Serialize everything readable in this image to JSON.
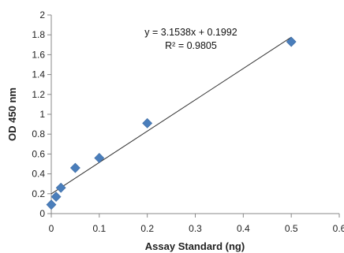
{
  "chart_data": {
    "type": "scatter",
    "xlabel": "Assay Standard (ng)",
    "ylabel": "OD 450 nm",
    "xlim": [
      0,
      0.6
    ],
    "ylim": [
      0,
      2
    ],
    "x_ticks": [
      "0",
      "0.1",
      "0.2",
      "0.3",
      "0.4",
      "0.5",
      "0.6"
    ],
    "y_ticks": [
      "0",
      "0.2",
      "0.4",
      "0.6",
      "0.8",
      "1",
      "1.2",
      "1.4",
      "1.6",
      "1.8",
      "2"
    ],
    "grid": false,
    "marker_color": "#4a7ebb",
    "trendline_color": "#333333",
    "series": [
      {
        "points": [
          {
            "x": 0,
            "y": 0.09
          },
          {
            "x": 0.01,
            "y": 0.17
          },
          {
            "x": 0.02,
            "y": 0.26
          },
          {
            "x": 0.05,
            "y": 0.46
          },
          {
            "x": 0.1,
            "y": 0.56
          },
          {
            "x": 0.2,
            "y": 0.91
          },
          {
            "x": 0.5,
            "y": 1.73
          }
        ]
      }
    ],
    "trendline": {
      "slope": 3.1538,
      "intercept": 0.1992,
      "x_range": [
        0,
        0.5
      ]
    },
    "annotations": {
      "equation": "y = 3.1538x + 0.1992",
      "r_squared": "R² = 0.9805"
    }
  }
}
